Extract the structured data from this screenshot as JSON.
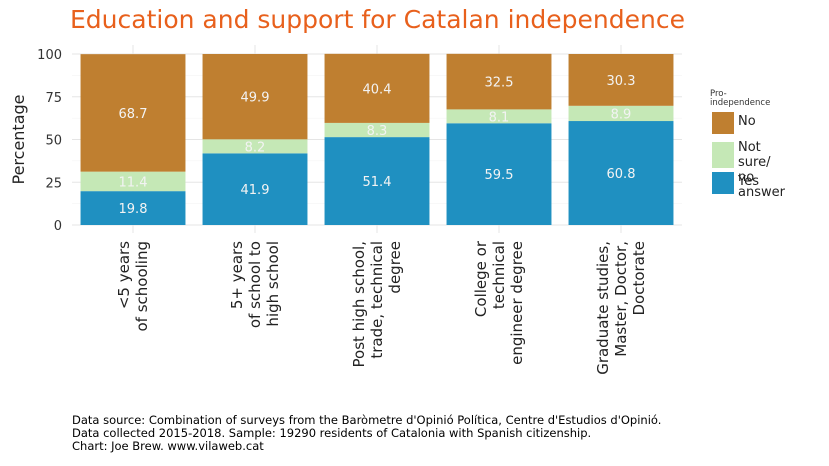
{
  "chart_data": {
    "type": "bar",
    "stacked": true,
    "title": "Education and support for Catalan independence",
    "ylabel": "Percentage",
    "xlabel": "",
    "ylim": [
      0,
      100
    ],
    "yticks": [
      0,
      25,
      50,
      75,
      100
    ],
    "grid": true,
    "legend_position": "right",
    "legend_title": "Pro-\nindependence",
    "categories": [
      "<5 years\nof schooling",
      "5+ years\nof school to\nhigh school",
      "Post high school,\ntrade, technical\ndegree",
      "College or\ntechnical\nengineer degree",
      "Graduate studies,\nMaster, Doctor,\nDoctorate"
    ],
    "series": [
      {
        "name": "Yes",
        "color": "#1f90c1",
        "values": [
          19.8,
          41.9,
          51.4,
          59.5,
          60.8
        ]
      },
      {
        "name": "Not sure/\nno answer",
        "color": "#c5e8b6",
        "values": [
          11.4,
          8.2,
          8.3,
          8.1,
          8.9
        ]
      },
      {
        "name": "No",
        "color": "#bf7f30",
        "values": [
          68.7,
          49.9,
          40.4,
          32.5,
          30.3
        ]
      }
    ],
    "legend_order": [
      "No",
      "Not sure/\nno answer",
      "Yes"
    ]
  },
  "caption": [
    "Data source: Combination of surveys from the Baròmetre d'Opinió Política, Centre d'Estudios d'Opinió.",
    "Data collected 2015-2018. Sample: 19290 residents of Catalonia with Spanish citizenship.",
    "Chart: Joe Brew. www.vilaweb.cat"
  ]
}
